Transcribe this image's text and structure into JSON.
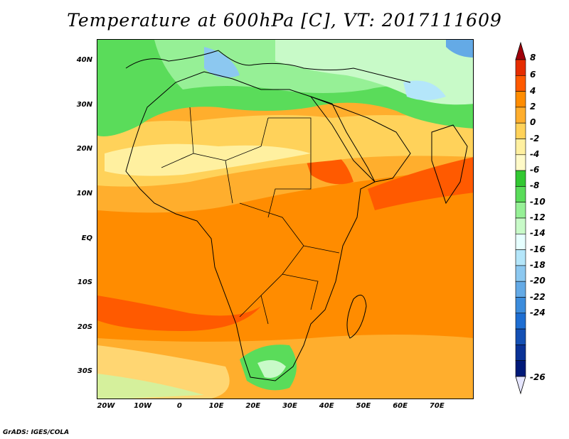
{
  "title": "Temperature at 600hPa [C], VT: 2017111609",
  "credit": "GrADS: IGES/COLA",
  "map": {
    "lat_labels": [
      "40N",
      "30N",
      "20N",
      "10N",
      "EQ",
      "10S",
      "20S",
      "30S"
    ],
    "lon_labels": [
      "20W",
      "10W",
      "0",
      "10E",
      "20E",
      "30E",
      "40E",
      "50E",
      "60E",
      "70E"
    ],
    "lat_values": [
      40,
      30,
      20,
      10,
      0,
      -10,
      -20,
      -30
    ],
    "lon_values": [
      -20,
      -10,
      0,
      10,
      20,
      30,
      40,
      50,
      60,
      70
    ],
    "extent": {
      "lon_min": -22.5,
      "lon_max": 80,
      "lat_min": -36,
      "lat_max": 45
    }
  },
  "colorbar": {
    "labels": [
      "8",
      "6",
      "4",
      "2",
      "0",
      "-2",
      "-4",
      "-6",
      "-8",
      "-10",
      "-12",
      "-14",
      "-16",
      "-18",
      "-20",
      "-22",
      "-24",
      "-26"
    ],
    "colors": [
      "#a0000a",
      "#e62d00",
      "#ff5a00",
      "#ff8c00",
      "#ffae2d",
      "#ffd25a",
      "#fff0a0",
      "#fffac8",
      "#32c832",
      "#5adc5a",
      "#96f096",
      "#c8fac8",
      "#e6ffff",
      "#b4e6fa",
      "#8cc8f0",
      "#64aae6",
      "#3c8cdc",
      "#1e6ed2",
      "#1450b4",
      "#0a3296",
      "#001978",
      "#e6e6ff"
    ]
  }
}
